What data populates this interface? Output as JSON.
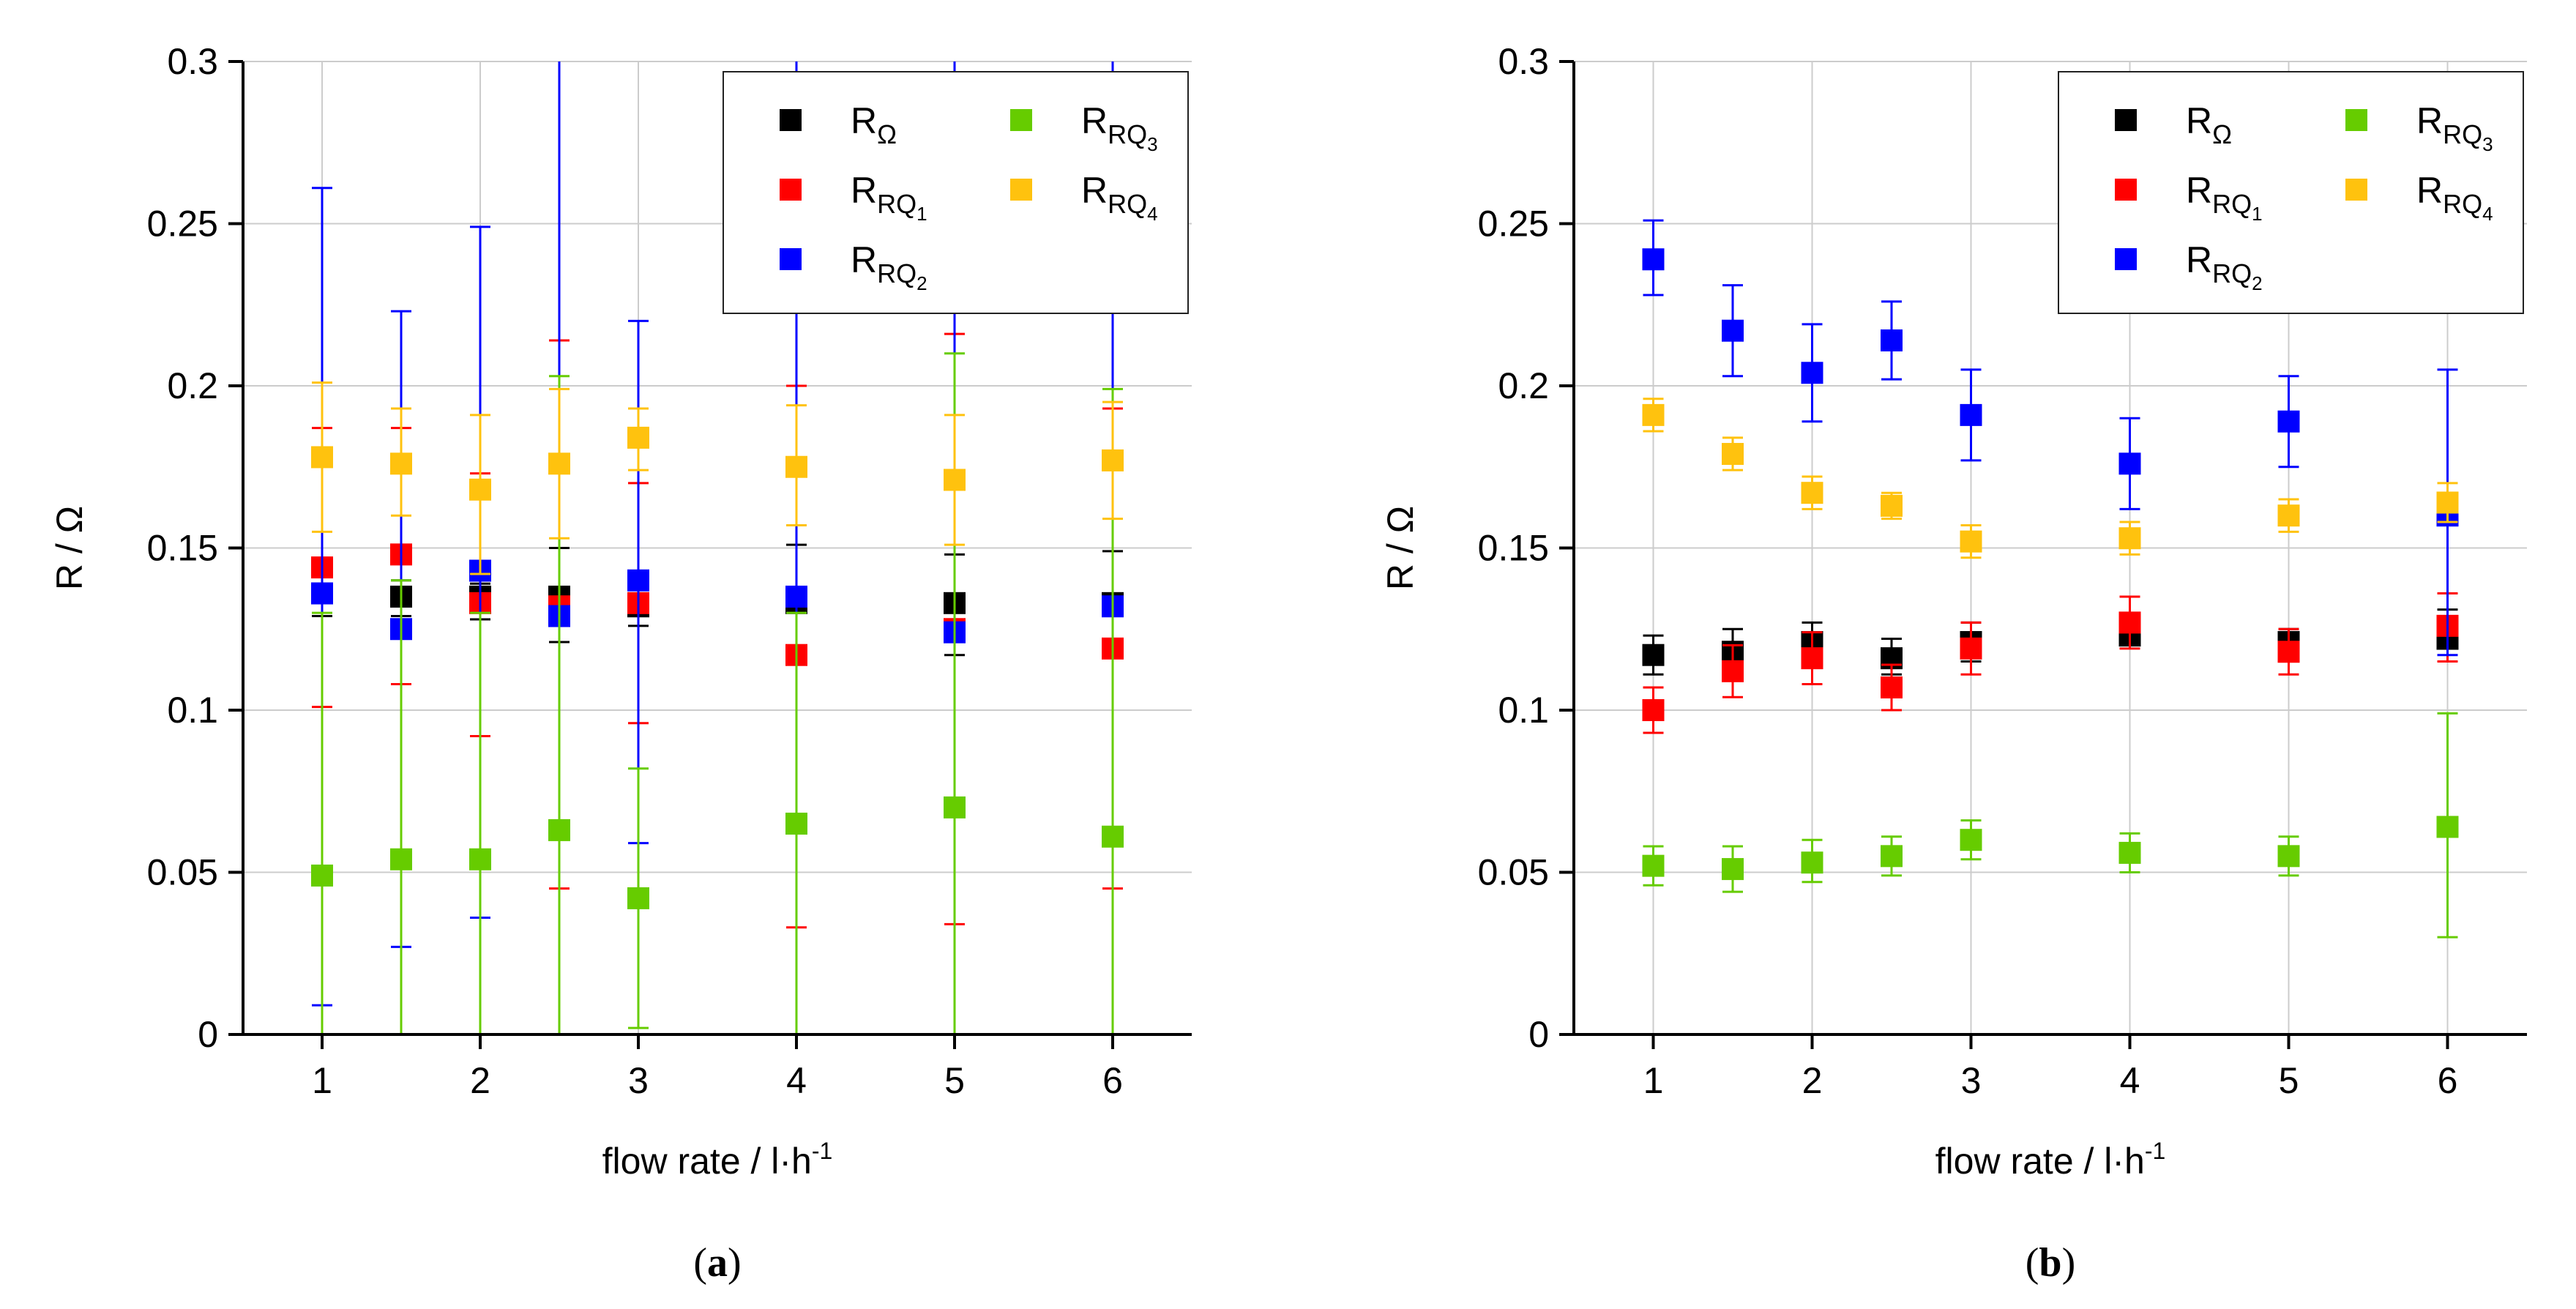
{
  "colors": {
    "R_Omega": "#000000",
    "R_RQ1": "#ff0000",
    "R_RQ2": "#0000ff",
    "R_RQ3": "#66cc00",
    "R_RQ4": "#ffc20e"
  },
  "chart_data": [
    {
      "type": "scatter",
      "panel_label": "(a)",
      "panel_letter": "a",
      "xlabel": "flow rate / l·h⁻¹",
      "xlabel_main": "flow rate / l·h",
      "xlabel_sup": "-1",
      "ylabel": "R / Ω",
      "xlim": [
        0.5,
        6.5
      ],
      "ylim": [
        0,
        0.3
      ],
      "xticks": [
        1,
        2,
        3,
        4,
        5,
        6
      ],
      "yticks": [
        0,
        0.05,
        0.1,
        0.15,
        0.2,
        0.25,
        0.3
      ],
      "ytick_labels": [
        "0",
        "0.05",
        "0.1",
        "0.15",
        "0.2",
        "0.25",
        "0.3"
      ],
      "grid": true,
      "legend_position": "top-right",
      "x": [
        1,
        1.5,
        2,
        2.5,
        3,
        4,
        5,
        6
      ],
      "series": [
        {
          "key": "R_Omega",
          "name": "RΩ",
          "label_main": "R",
          "label_sub": "Ω",
          "label_subsub": "",
          "y": [
            0.136,
            0.135,
            0.135,
            0.135,
            0.132,
            0.133,
            0.133,
            0.133
          ],
          "lo": [
            0.129,
            0.129,
            0.128,
            0.121,
            0.126,
            0.132,
            0.117,
            0.118
          ],
          "hi": [
            0.143,
            0.14,
            0.139,
            0.15,
            0.139,
            0.151,
            0.148,
            0.149
          ]
        },
        {
          "key": "R_RQ1",
          "name": "RRQ1",
          "label_main": "R",
          "label_sub": "RQ",
          "label_subsub": "1",
          "y": [
            0.144,
            0.148,
            0.133,
            0.132,
            0.133,
            0.117,
            0.125,
            0.119
          ],
          "lo": [
            0.101,
            0.108,
            0.092,
            0.045,
            0.096,
            0.033,
            0.034,
            0.045
          ],
          "hi": [
            0.187,
            0.187,
            0.173,
            0.214,
            0.17,
            0.2,
            0.216,
            0.193
          ]
        },
        {
          "key": "R_RQ2",
          "name": "RRQ2",
          "label_main": "R",
          "label_sub": "RQ",
          "label_subsub": "2",
          "y": [
            0.136,
            0.125,
            0.143,
            0.129,
            0.14,
            0.135,
            0.124,
            0.132
          ],
          "lo": [
            0.009,
            0.027,
            0.036,
            0.0,
            0.059,
            0.0,
            0.0,
            0.0
          ],
          "hi": [
            0.261,
            0.223,
            0.249,
            0.3,
            0.22,
            0.3,
            0.3,
            0.3
          ]
        },
        {
          "key": "R_RQ3",
          "name": "RRQ3",
          "label_main": "R",
          "label_sub": "RQ",
          "label_subsub": "3",
          "y": [
            0.049,
            0.054,
            0.054,
            0.063,
            0.042,
            0.065,
            0.07,
            0.061
          ],
          "lo": [
            0.0,
            0.0,
            0.0,
            0.0,
            0.002,
            0.0,
            0.0,
            0.0
          ],
          "hi": [
            0.13,
            0.14,
            0.13,
            0.203,
            0.082,
            0.13,
            0.21,
            0.199
          ]
        },
        {
          "key": "R_RQ4",
          "name": "RRQ4",
          "label_main": "R",
          "label_sub": "RQ",
          "label_subsub": "4",
          "y": [
            0.178,
            0.176,
            0.168,
            0.176,
            0.184,
            0.175,
            0.171,
            0.177
          ],
          "lo": [
            0.155,
            0.16,
            0.142,
            0.153,
            0.174,
            0.157,
            0.151,
            0.159
          ],
          "hi": [
            0.201,
            0.193,
            0.191,
            0.199,
            0.193,
            0.194,
            0.191,
            0.195
          ]
        }
      ]
    },
    {
      "type": "scatter",
      "panel_label": "(b)",
      "panel_letter": "b",
      "xlabel": "flow rate / l·h⁻¹",
      "xlabel_main": "flow rate / l·h",
      "xlabel_sup": "-1",
      "ylabel": "R / Ω",
      "xlim": [
        0.5,
        6.5
      ],
      "ylim": [
        0,
        0.3
      ],
      "xticks": [
        1,
        2,
        3,
        4,
        5,
        6
      ],
      "yticks": [
        0,
        0.05,
        0.1,
        0.15,
        0.2,
        0.25,
        0.3
      ],
      "ytick_labels": [
        "0",
        "0.05",
        "0.1",
        "0.15",
        "0.2",
        "0.25",
        "0.3"
      ],
      "grid": true,
      "legend_position": "top-right",
      "x": [
        1,
        1.5,
        2,
        2.5,
        3,
        4,
        5,
        6
      ],
      "series": [
        {
          "key": "R_Omega",
          "name": "RΩ",
          "label_main": "R",
          "label_sub": "Ω",
          "label_subsub": "",
          "y": [
            0.117,
            0.118,
            0.121,
            0.116,
            0.121,
            0.123,
            0.121,
            0.122
          ],
          "lo": [
            0.111,
            0.112,
            0.115,
            0.111,
            0.115,
            0.12,
            0.116,
            0.115
          ],
          "hi": [
            0.123,
            0.125,
            0.127,
            0.122,
            0.127,
            0.127,
            0.125,
            0.131
          ]
        },
        {
          "key": "R_RQ1",
          "name": "RRQ1",
          "label_main": "R",
          "label_sub": "RQ",
          "label_subsub": "1",
          "y": [
            0.1,
            0.112,
            0.116,
            0.107,
            0.119,
            0.127,
            0.118,
            0.126
          ],
          "lo": [
            0.093,
            0.104,
            0.108,
            0.1,
            0.111,
            0.119,
            0.111,
            0.115
          ],
          "hi": [
            0.107,
            0.12,
            0.124,
            0.114,
            0.127,
            0.135,
            0.125,
            0.136
          ]
        },
        {
          "key": "R_RQ2",
          "name": "RRQ2",
          "label_main": "R",
          "label_sub": "RQ",
          "label_subsub": "2",
          "y": [
            0.239,
            0.217,
            0.204,
            0.214,
            0.191,
            0.176,
            0.189,
            0.16
          ],
          "lo": [
            0.228,
            0.203,
            0.189,
            0.202,
            0.177,
            0.162,
            0.175,
            0.117
          ],
          "hi": [
            0.251,
            0.231,
            0.219,
            0.226,
            0.205,
            0.19,
            0.203,
            0.205
          ]
        },
        {
          "key": "R_RQ3",
          "name": "RRQ3",
          "label_main": "R",
          "label_sub": "RQ",
          "label_subsub": "3",
          "y": [
            0.052,
            0.051,
            0.053,
            0.055,
            0.06,
            0.056,
            0.055,
            0.064
          ],
          "lo": [
            0.046,
            0.044,
            0.047,
            0.049,
            0.054,
            0.05,
            0.049,
            0.03
          ],
          "hi": [
            0.058,
            0.058,
            0.06,
            0.061,
            0.066,
            0.062,
            0.061,
            0.099
          ]
        },
        {
          "key": "R_RQ4",
          "name": "RRQ4",
          "label_main": "R",
          "label_sub": "RQ",
          "label_subsub": "4",
          "y": [
            0.191,
            0.179,
            0.167,
            0.163,
            0.152,
            0.153,
            0.16,
            0.164
          ],
          "lo": [
            0.186,
            0.174,
            0.162,
            0.159,
            0.147,
            0.148,
            0.155,
            0.158
          ],
          "hi": [
            0.196,
            0.184,
            0.172,
            0.167,
            0.157,
            0.158,
            0.165,
            0.17
          ]
        }
      ]
    }
  ]
}
